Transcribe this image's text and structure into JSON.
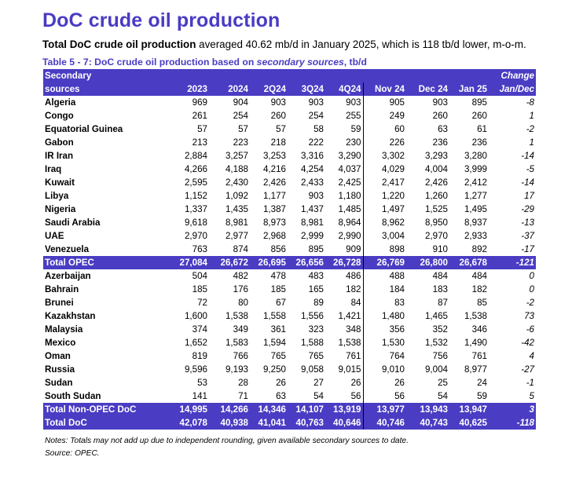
{
  "title": "DoC crude oil production",
  "summary": {
    "bold": "Total DoC crude oil production",
    "rest": " averaged 40.62 mb/d in January 2025, which is 118 tb/d lower, m-o-m."
  },
  "table_caption": {
    "prefix": "Table 5 - 7: DoC crude oil production based on ",
    "italic": "secondary sources",
    "suffix": ", tb/d"
  },
  "header": {
    "name_line1": "Secondary",
    "name_line2": "sources",
    "change_line1": "Change",
    "change_line2": "Jan/Dec",
    "columns": [
      "2023",
      "2024",
      "2Q24",
      "3Q24",
      "4Q24",
      "Nov 24",
      "Dec 24",
      "Jan 25"
    ]
  },
  "rows": [
    {
      "name": "Algeria",
      "values": [
        "969",
        "904",
        "903",
        "903",
        "903",
        "905",
        "903",
        "895"
      ],
      "change": "-8"
    },
    {
      "name": "Congo",
      "values": [
        "261",
        "254",
        "260",
        "254",
        "255",
        "249",
        "260",
        "260"
      ],
      "change": "1"
    },
    {
      "name": "Equatorial Guinea",
      "values": [
        "57",
        "57",
        "57",
        "58",
        "59",
        "60",
        "63",
        "61"
      ],
      "change": "-2"
    },
    {
      "name": "Gabon",
      "values": [
        "213",
        "223",
        "218",
        "222",
        "230",
        "226",
        "236",
        "236"
      ],
      "change": "1"
    },
    {
      "name": "IR Iran",
      "values": [
        "2,884",
        "3,257",
        "3,253",
        "3,316",
        "3,290",
        "3,302",
        "3,293",
        "3,280"
      ],
      "change": "-14"
    },
    {
      "name": "Iraq",
      "values": [
        "4,266",
        "4,188",
        "4,216",
        "4,254",
        "4,037",
        "4,029",
        "4,004",
        "3,999"
      ],
      "change": "-5"
    },
    {
      "name": "Kuwait",
      "values": [
        "2,595",
        "2,430",
        "2,426",
        "2,433",
        "2,425",
        "2,417",
        "2,426",
        "2,412"
      ],
      "change": "-14"
    },
    {
      "name": "Libya",
      "values": [
        "1,152",
        "1,092",
        "1,177",
        "903",
        "1,180",
        "1,220",
        "1,260",
        "1,277"
      ],
      "change": "17"
    },
    {
      "name": "Nigeria",
      "values": [
        "1,337",
        "1,435",
        "1,387",
        "1,437",
        "1,485",
        "1,497",
        "1,525",
        "1,495"
      ],
      "change": "-29"
    },
    {
      "name": "Saudi Arabia",
      "values": [
        "9,618",
        "8,981",
        "8,973",
        "8,981",
        "8,964",
        "8,962",
        "8,950",
        "8,937"
      ],
      "change": "-13"
    },
    {
      "name": "UAE",
      "values": [
        "2,970",
        "2,977",
        "2,968",
        "2,999",
        "2,990",
        "3,004",
        "2,970",
        "2,933"
      ],
      "change": "-37"
    },
    {
      "name": "Venezuela",
      "values": [
        "763",
        "874",
        "856",
        "895",
        "909",
        "898",
        "910",
        "892"
      ],
      "change": "-17"
    },
    {
      "name": "Total  OPEC",
      "total": true,
      "values": [
        "27,084",
        "26,672",
        "26,695",
        "26,656",
        "26,728",
        "26,769",
        "26,800",
        "26,678"
      ],
      "change": "-121"
    },
    {
      "name": "Azerbaijan",
      "values": [
        "504",
        "482",
        "478",
        "483",
        "486",
        "488",
        "484",
        "484"
      ],
      "change": "0"
    },
    {
      "name": "Bahrain",
      "values": [
        "185",
        "176",
        "185",
        "165",
        "182",
        "184",
        "183",
        "182"
      ],
      "change": "0"
    },
    {
      "name": "Brunei",
      "values": [
        "72",
        "80",
        "67",
        "89",
        "84",
        "83",
        "87",
        "85"
      ],
      "change": "-2"
    },
    {
      "name": "Kazakhstan",
      "values": [
        "1,600",
        "1,538",
        "1,558",
        "1,556",
        "1,421",
        "1,480",
        "1,465",
        "1,538"
      ],
      "change": "73"
    },
    {
      "name": "Malaysia",
      "values": [
        "374",
        "349",
        "361",
        "323",
        "348",
        "356",
        "352",
        "346"
      ],
      "change": "-6"
    },
    {
      "name": "Mexico",
      "values": [
        "1,652",
        "1,583",
        "1,594",
        "1,588",
        "1,538",
        "1,530",
        "1,532",
        "1,490"
      ],
      "change": "-42"
    },
    {
      "name": "Oman",
      "values": [
        "819",
        "766",
        "765",
        "765",
        "761",
        "764",
        "756",
        "761"
      ],
      "change": "4"
    },
    {
      "name": "Russia",
      "values": [
        "9,596",
        "9,193",
        "9,250",
        "9,058",
        "9,015",
        "9,010",
        "9,004",
        "8,977"
      ],
      "change": "-27"
    },
    {
      "name": "Sudan",
      "values": [
        "53",
        "28",
        "26",
        "27",
        "26",
        "26",
        "25",
        "24"
      ],
      "change": "-1"
    },
    {
      "name": "South Sudan",
      "values": [
        "141",
        "71",
        "63",
        "54",
        "56",
        "56",
        "54",
        "59"
      ],
      "change": "5"
    },
    {
      "name": "Total Non-OPEC DoC",
      "total": true,
      "values": [
        "14,995",
        "14,266",
        "14,346",
        "14,107",
        "13,919",
        "13,977",
        "13,943",
        "13,947"
      ],
      "change": "3"
    },
    {
      "name": "Total DoC",
      "total": true,
      "values": [
        "42,078",
        "40,938",
        "41,041",
        "40,763",
        "40,646",
        "40,746",
        "40,743",
        "40,625"
      ],
      "change": "-118"
    }
  ],
  "notes": {
    "line1": "Notes: Totals may not add up due to independent rounding, given available secondary sources to date.",
    "line2": "Source: OPEC."
  }
}
